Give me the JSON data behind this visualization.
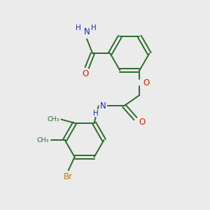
{
  "bg_color": "#ebebeb",
  "bond_color": "#2d6b2d",
  "N_color": "#2020bb",
  "O_color": "#cc2200",
  "Br_color": "#bb7700",
  "figsize": [
    3.0,
    3.0
  ],
  "dpi": 100,
  "xlim": [
    0,
    10
  ],
  "ylim": [
    0,
    10
  ]
}
